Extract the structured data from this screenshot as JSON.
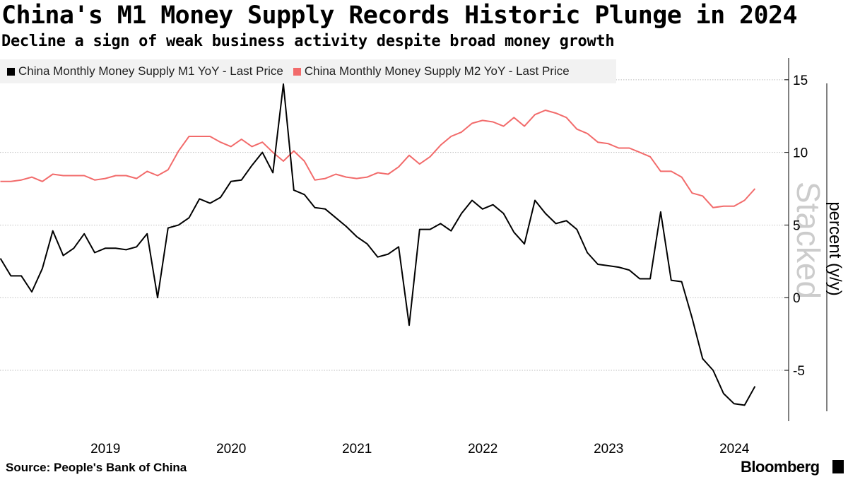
{
  "header": {
    "title": "China's M1 Money Supply Records Historic Plunge in 2024",
    "subtitle": "Decline a sign of weak business activity despite broad money growth"
  },
  "footer": {
    "source": "Source: People's Bank of China",
    "brand": "Bloomberg"
  },
  "colors": {
    "m1": "#000000",
    "m2": "#f26b6b",
    "grid": "#bfbfbf",
    "watermark": "#cccccc"
  },
  "chart_data": {
    "type": "line",
    "title": "China's M1 Money Supply Records Historic Plunge in 2024",
    "subtitle": "Decline a sign of weak business activity despite broad money growth",
    "xlabel": "",
    "ylabel": "percent (y/y)",
    "watermark": "Stacked",
    "ylim": [
      -8.5,
      16.5
    ],
    "yticks": [
      -5,
      0,
      5,
      10,
      15
    ],
    "ytick_labels": [
      "-5",
      "0",
      "5",
      "10",
      "15"
    ],
    "xlim": [
      2018.33,
      2024.6
    ],
    "xticks": [
      2019.0,
      2020.0,
      2021.0,
      2022.0,
      2023.0,
      2024.0
    ],
    "xtick_labels": [
      "2019",
      "2020",
      "2021",
      "2022",
      "2023",
      "2024"
    ],
    "x_start": 2018.333,
    "x_step": 0.08333,
    "grid": true,
    "legend_position": "top-left",
    "series": [
      {
        "name": "China Monthly Money Supply M1 YoY - Last Price",
        "values": [
          2.7,
          1.5,
          1.5,
          0.4,
          2.0,
          4.6,
          2.9,
          3.4,
          4.4,
          3.1,
          3.4,
          3.4,
          3.3,
          3.5,
          4.4,
          0.0,
          4.8,
          5.0,
          5.5,
          6.8,
          6.5,
          6.9,
          8.0,
          8.1,
          9.1,
          10.0,
          8.6,
          14.7,
          7.4,
          7.1,
          6.2,
          6.1,
          5.5,
          4.9,
          4.2,
          3.7,
          2.8,
          3.0,
          3.5,
          -1.9,
          4.7,
          4.7,
          5.1,
          4.6,
          5.8,
          6.7,
          6.1,
          6.4,
          5.8,
          4.5,
          3.7,
          6.7,
          5.8,
          5.1,
          5.3,
          4.7,
          3.1,
          2.3,
          2.2,
          2.1,
          1.9,
          1.3,
          1.3,
          5.9,
          1.2,
          1.1,
          -1.4,
          -4.2,
          -5.0,
          -6.6,
          -7.3,
          -7.4,
          -6.1
        ]
      },
      {
        "name": "China Monthly Money Supply M2 YoY - Last Price",
        "values": [
          8.0,
          8.0,
          8.1,
          8.3,
          8.0,
          8.5,
          8.4,
          8.4,
          8.4,
          8.1,
          8.2,
          8.4,
          8.4,
          8.2,
          8.7,
          8.4,
          8.8,
          10.1,
          11.1,
          11.1,
          11.1,
          10.7,
          10.4,
          10.9,
          10.4,
          10.7,
          10.0,
          9.4,
          10.1,
          9.4,
          8.1,
          8.2,
          8.5,
          8.3,
          8.2,
          8.3,
          8.6,
          8.5,
          9.0,
          9.8,
          9.2,
          9.7,
          10.5,
          11.1,
          11.4,
          12.0,
          12.2,
          12.1,
          11.8,
          12.4,
          11.8,
          12.6,
          12.9,
          12.7,
          12.4,
          11.6,
          11.3,
          10.7,
          10.6,
          10.3,
          10.3,
          10.0,
          9.7,
          8.7,
          8.7,
          8.3,
          7.2,
          7.0,
          6.2,
          6.3,
          6.3,
          6.7,
          7.5
        ]
      }
    ]
  }
}
